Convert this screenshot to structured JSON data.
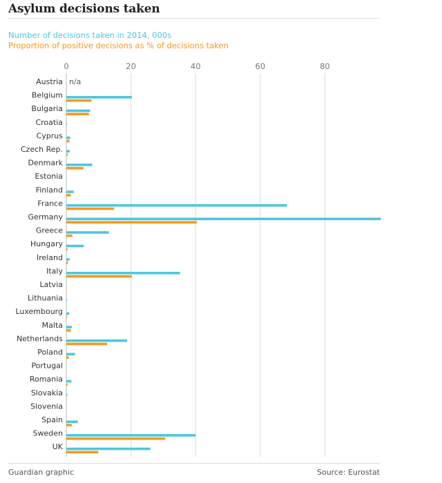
{
  "title": "Asylum decisions taken",
  "source": "Source: Eurostat",
  "credit": "Guardian graphic",
  "colors": {
    "series1": "#4bc6df",
    "series2": "#f59a1f",
    "grid": "#d9d9d9",
    "axis_text": "#777777"
  },
  "chart_data": {
    "type": "bar",
    "orientation": "horizontal",
    "title": "Asylum decisions taken",
    "xlim": [
      0,
      97
    ],
    "ticks": [
      0,
      20,
      40,
      60,
      80
    ],
    "tick_labels": [
      "0",
      "20",
      "40",
      "60",
      "80"
    ],
    "grid": true,
    "legend_position": "top-left",
    "categories": [
      "Austria",
      "Belgium",
      "Bulgaria",
      "Croatia",
      "Cyprus",
      "Czech Rep.",
      "Denmark",
      "Estonia",
      "Finland",
      "France",
      "Germany",
      "Greece",
      "Hungary",
      "Ireland",
      "Italy",
      "Latvia",
      "Lithuania",
      "Luxembourg",
      "Malta",
      "Netherlands",
      "Poland",
      "Portugal",
      "Romania",
      "Slovakia",
      "Slovenia",
      "Spain",
      "Sweden",
      "UK"
    ],
    "annotations": [
      {
        "category": "Austria",
        "text": "n/a"
      }
    ],
    "series": [
      {
        "name": "Number of decisions taken in 2014, 000s",
        "values": [
          null,
          20.3,
          7.4,
          0.2,
          1.2,
          1.1,
          8.0,
          0.1,
          2.3,
          68.3,
          97.3,
          13.2,
          5.4,
          1.0,
          35.2,
          0.1,
          0.2,
          0.9,
          1.7,
          18.8,
          2.7,
          0.1,
          1.6,
          0.3,
          0.1,
          3.6,
          40.0,
          26.0
        ]
      },
      {
        "name": "Proportion of positive decisions as % of decisions taken",
        "values": [
          null,
          7.8,
          7.0,
          0.1,
          1.0,
          0.4,
          5.3,
          0.0,
          1.4,
          14.8,
          40.4,
          1.9,
          0.4,
          0.5,
          20.3,
          0.1,
          0.0,
          0.2,
          1.4,
          12.6,
          0.8,
          0.1,
          0.4,
          0.1,
          0.0,
          1.7,
          30.6,
          9.9
        ]
      }
    ]
  }
}
